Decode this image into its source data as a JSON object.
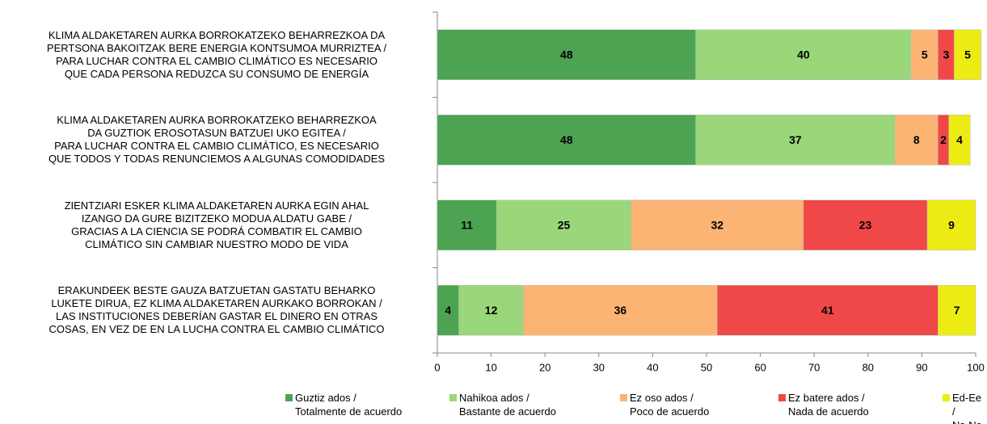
{
  "chart_data": {
    "type": "stacked-bar-horizontal",
    "categories": [
      "KLIMA ALDAKETAREN AURKA BORROKATZEKO BEHARREZKOA DA\nPERTSONA BAKOITZAK BERE ENERGIA KONTSUMOA MURRIZTEA /\nPARA LUCHAR CONTRA EL CAMBIO CLIMÁTICO ES NECESARIO\nQUE CADA PERSONA REDUZCA SU CONSUMO DE ENERGÍA",
      "KLIMA ALDAKETAREN AURKA BORROKATZEKO BEHARREZKOA\nDA GUZTIOK EROSOTASUN BATZUEI UKO EGITEA /\nPARA LUCHAR CONTRA EL CAMBIO CLIMÁTICO, ES NECESARIO\nQUE TODOS Y TODAS RENUNCIEMOS A ALGUNAS COMODIDADES",
      "ZIENTZIARI ESKER KLIMA ALDAKETAREN AURKA EGIN AHAL\nIZANGO DA GURE BIZITZEKO MODUA ALDATU GABE /\nGRACIAS A LA CIENCIA SE PODRÁ COMBATIR EL CAMBIO\nCLIMÁTICO SIN CAMBIAR NUESTRO MODO DE VIDA",
      "ERAKUNDEEK BESTE GAUZA BATZUETAN GASTATU BEHARKO\nLUKETE DIRUA, EZ KLIMA ALDAKETAREN AURKAKO BORROKAN /\nLAS INSTITUCIONES DEBERÍAN GASTAR EL DINERO EN OTRAS\nCOSAS, EN VEZ DE EN LA LUCHA CONTRA EL CAMBIO CLIMÁTICO"
    ],
    "series": [
      {
        "name": "Guztiz ados /\nTotalmente de acuerdo",
        "color": "#4ca453",
        "values": [
          48,
          48,
          11,
          4
        ]
      },
      {
        "name": "Nahikoa ados /\nBastante de acuerdo",
        "color": "#9ad67a",
        "values": [
          40,
          37,
          25,
          12
        ]
      },
      {
        "name": "Ez oso ados /\nPoco de acuerdo",
        "color": "#fbb474",
        "values": [
          5,
          8,
          32,
          36
        ]
      },
      {
        "name": "Ez batere ados /\nNada de acuerdo",
        "color": "#f04848",
        "values": [
          3,
          2,
          23,
          41
        ]
      },
      {
        "name": "Ed-Ee /\nNs-Nc",
        "color": "#ecec14",
        "values": [
          5,
          4,
          9,
          7
        ]
      }
    ],
    "xlim": [
      0,
      100
    ],
    "xticks": [
      0,
      10,
      20,
      30,
      40,
      50,
      60,
      70,
      80,
      90,
      100
    ]
  }
}
